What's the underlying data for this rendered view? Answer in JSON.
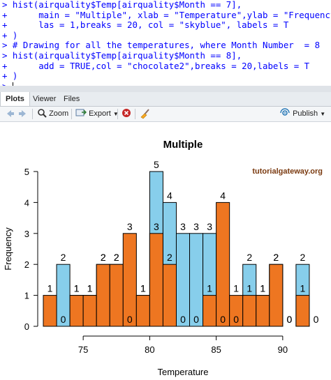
{
  "console": {
    "lines": [
      "> hist(airquality$Temp[airquality$Month == 7],",
      "+      main = \"Multiple\", xlab = \"Temperature\",ylab = \"Frequency\",",
      "+      las = 1,breaks = 20, col = \"skyblue\", labels = T",
      "+ )",
      "> # Drawing for all the temperatures, where Month Number  = 8",
      "> hist(airquality$Temp[airquality$Month == 8],",
      "+      add = TRUE,col = \"chocolate2\",breaks = 20,labels = T",
      "+ )",
      "> "
    ]
  },
  "tabs": [
    "Plots",
    "Viewer",
    "Files"
  ],
  "toolbar": {
    "zoom_label": "Zoom",
    "export_label": "Export",
    "publish_label": "Publish"
  },
  "colors": {
    "series_a": "#87ceeb",
    "series_b": "#ee7621",
    "console_text": "#0000ff"
  },
  "watermark": "tutorialgateway.org",
  "chart_data": {
    "type": "bar",
    "title": "Multiple",
    "xlabel": "Temperature",
    "ylabel": "Frequency",
    "x_ticks": [
      75,
      80,
      85,
      90
    ],
    "y_ticks": [
      0,
      1,
      2,
      3,
      4,
      5
    ],
    "xlim": [
      72,
      93
    ],
    "ylim": [
      0,
      5
    ],
    "series": [
      {
        "name": "airquality$Temp[airquality$Month == 7]",
        "color": "skyblue",
        "bin_width": 1,
        "bin_starts": [
          73,
          74,
          75,
          76,
          77,
          78,
          79,
          80,
          81,
          82,
          83,
          84,
          85,
          86,
          87,
          88,
          89,
          90,
          91,
          92
        ],
        "counts": [
          2,
          1,
          1,
          2,
          2,
          0,
          1,
          5,
          4,
          3,
          3,
          3,
          0,
          0,
          2,
          1,
          2,
          0,
          2,
          0
        ]
      },
      {
        "name": "airquality$Temp[airquality$Month == 8]",
        "color": "chocolate2",
        "bin_width": 1,
        "bin_starts": [
          72,
          73,
          74,
          75,
          76,
          77,
          78,
          79,
          80,
          81,
          82,
          83,
          84,
          85,
          86,
          87,
          88,
          89,
          90,
          91
        ],
        "counts": [
          1,
          0,
          1,
          1,
          2,
          2,
          3,
          1,
          3,
          2,
          0,
          0,
          1,
          4,
          1,
          1,
          1,
          2,
          0,
          1
        ]
      }
    ]
  }
}
